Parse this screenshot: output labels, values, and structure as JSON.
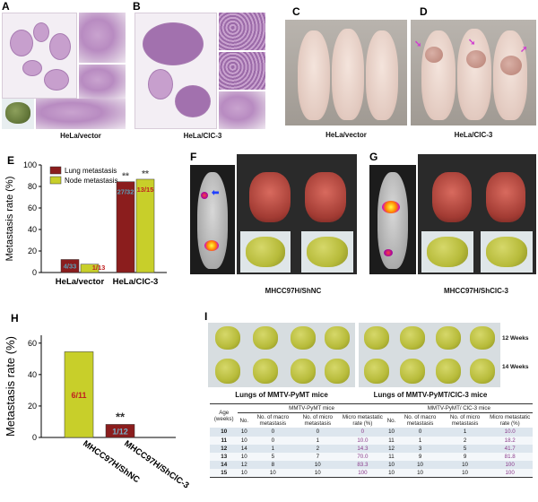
{
  "panels": {
    "A": {
      "label": "A",
      "caption": "HeLa/vector"
    },
    "B": {
      "label": "B",
      "caption": "HeLa/ClC-3"
    },
    "C": {
      "label": "C",
      "caption": "HeLa/vector"
    },
    "D": {
      "label": "D",
      "caption": "HeLa/ClC-3"
    },
    "E": {
      "label": "E"
    },
    "F": {
      "label": "F"
    },
    "G": {
      "label": "G"
    },
    "FG": {
      "caption_f": "MHCC97H/ShNC",
      "caption_g": "MHCC97H/ShClC-3"
    },
    "H": {
      "label": "H"
    },
    "I": {
      "label": "I",
      "row1": "12 Weeks",
      "row2": "14 Weeks",
      "caption_left": "Lungs of MMTV-PyMT mice",
      "caption_right": "Lungs of MMTV-PyMT/ClC-3 mice"
    }
  },
  "chart_data": [
    {
      "type": "bar",
      "panel": "E",
      "ylabel": "Metastasis rate (%)",
      "ylim": [
        0,
        100
      ],
      "yticks": [
        0,
        20,
        40,
        60,
        80,
        100
      ],
      "categories": [
        "HeLa/vector",
        "HeLa/ClC-3"
      ],
      "legend_position": "top-left",
      "series": [
        {
          "name": "Lung metastasis",
          "color": "#8b1d1d",
          "values": [
            12.1,
            84.4
          ],
          "labels": [
            "4/33",
            "27/32"
          ]
        },
        {
          "name": "Node metastasis",
          "color": "#c8cf2a",
          "values": [
            7.7,
            86.7
          ],
          "labels": [
            "1/13",
            "13/15"
          ]
        }
      ],
      "significance": [
        "",
        "**"
      ],
      "significance_per_series": [
        [
          "",
          "**"
        ],
        [
          "",
          "**"
        ]
      ]
    },
    {
      "type": "bar",
      "panel": "H",
      "ylabel": "Metastasis rate (%)",
      "ylim": [
        0,
        60
      ],
      "yticks": [
        0,
        20,
        40,
        60
      ],
      "categories": [
        "MHCC97H/ShNC",
        "MHCC97H/ShClC-3"
      ],
      "colors": [
        "#c8cf2a",
        "#8b1d1d"
      ],
      "values": [
        54.5,
        8.3
      ],
      "labels": [
        "6/11",
        "1/12"
      ],
      "significance": [
        "",
        "**"
      ]
    },
    {
      "type": "table",
      "panel": "I",
      "group_left": "MMTV-PyMT mice",
      "group_right": "MMTV-PyMT/ ClC-3 mice",
      "columns": [
        "Age (weeks)",
        "No.",
        "No. of macro metastasis",
        "No. of micro metastasis",
        "Micro metastatic rate (%)",
        "No.",
        "No. of macro metastasis",
        "No. of micro metastasis",
        "Micro metastatic rate (%)"
      ],
      "rows": [
        [
          "10",
          "10",
          "0",
          "0",
          "0",
          "10",
          "0",
          "1",
          "10.0"
        ],
        [
          "11",
          "10",
          "0",
          "1",
          "10.0",
          "11",
          "1",
          "2",
          "18.2"
        ],
        [
          "12",
          "14",
          "1",
          "2",
          "14.3",
          "12",
          "3",
          "5",
          "41.7"
        ],
        [
          "13",
          "10",
          "5",
          "7",
          "70.0",
          "11",
          "9",
          "9",
          "81.8"
        ],
        [
          "14",
          "12",
          "8",
          "10",
          "83.3",
          "10",
          "10",
          "10",
          "100"
        ],
        [
          "15",
          "10",
          "10",
          "10",
          "100",
          "10",
          "10",
          "10",
          "100"
        ]
      ]
    }
  ]
}
